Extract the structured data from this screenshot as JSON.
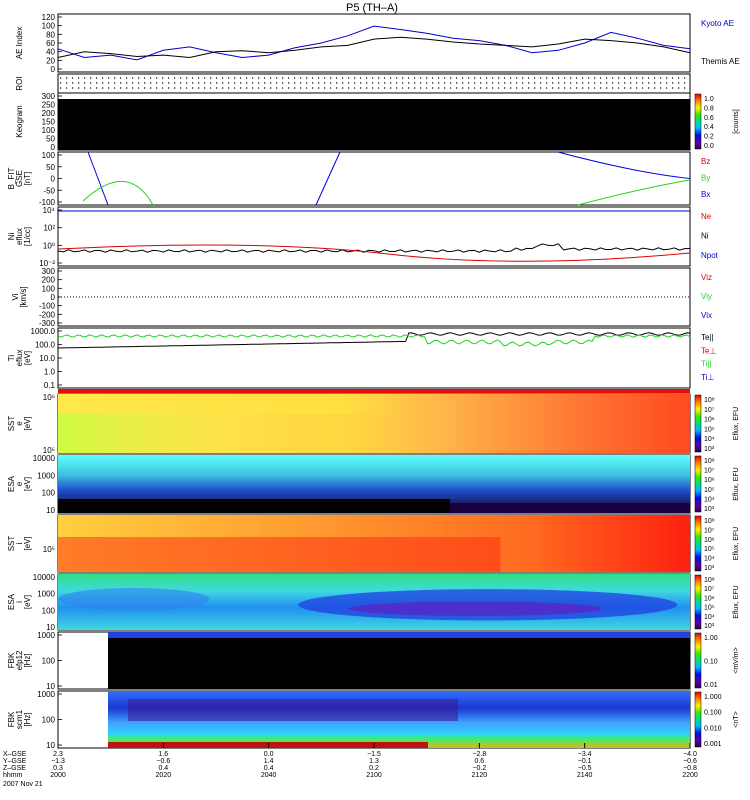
{
  "title": "P5 (TH–A)",
  "colors": {
    "red": "#d80000",
    "green": "#1fd41f",
    "blue": "#0000e0",
    "black": "#000000"
  },
  "chart_data": [
    {
      "id": "ae",
      "type": "line",
      "ylabel": [
        "AE Index"
      ],
      "ylim": [
        0,
        120
      ],
      "ticks": [
        "120",
        "100",
        "80",
        "60",
        "40",
        "20",
        "0"
      ],
      "legend": [
        {
          "label": "Kyoto AE",
          "color": "#0000d0"
        },
        {
          "label": "Themis AE",
          "color": "#000000"
        }
      ],
      "x": [
        0,
        5,
        10,
        15,
        20,
        25,
        30,
        35,
        40,
        45,
        50,
        55,
        60,
        65,
        70,
        75,
        80,
        85,
        90,
        95,
        100,
        105,
        110,
        115,
        120
      ],
      "series": [
        {
          "name": "Kyoto AE",
          "color": "#0000d0",
          "values": [
            48,
            30,
            35,
            25,
            45,
            52,
            40,
            30,
            35,
            50,
            60,
            75,
            95,
            88,
            80,
            70,
            65,
            55,
            40,
            45,
            60,
            82,
            70,
            55,
            48
          ]
        },
        {
          "name": "Themis AE",
          "color": "#000000",
          "values": [
            30,
            42,
            38,
            32,
            35,
            30,
            42,
            44,
            40,
            45,
            52,
            55,
            68,
            72,
            68,
            62,
            58,
            55,
            52,
            58,
            68,
            65,
            60,
            52,
            40
          ]
        }
      ]
    },
    {
      "id": "roi",
      "type": "table",
      "ylabel": [
        "ROI"
      ]
    },
    {
      "id": "keogram",
      "type": "heatmap",
      "ylabel": [
        "Keogram"
      ],
      "ticks": [
        "300",
        "250",
        "200",
        "150",
        "100",
        "50",
        "0"
      ],
      "colorbar": {
        "ticks": [
          "1.0",
          "0.8",
          "0.6",
          "0.4",
          "0.2",
          "0.0"
        ],
        "label": "[counts]"
      }
    },
    {
      "id": "bfield",
      "type": "line",
      "ylabel": [
        "B_FIT",
        "GSE",
        "[nT]"
      ],
      "ylim": [
        -100,
        100
      ],
      "ticks": [
        "100",
        "50",
        "0",
        "-50",
        "-100"
      ],
      "legend": [
        {
          "label": "Bz",
          "color": "#d80000"
        },
        {
          "label": "By",
          "color": "#1fd41f"
        },
        {
          "label": "Bx",
          "color": "#0000e0"
        }
      ]
    },
    {
      "id": "density",
      "type": "line",
      "ylabel": [
        "Ni",
        "eflux",
        "[1/cc]"
      ],
      "ticks": [
        "10⁴",
        "10²",
        "10⁰",
        "10⁻²"
      ],
      "legend": [
        {
          "label": "Ne",
          "color": "#d80000"
        },
        {
          "label": "Ni",
          "color": "#000000"
        },
        {
          "label": "Npot",
          "color": "#0000e0"
        }
      ]
    },
    {
      "id": "velocity",
      "type": "line",
      "ylabel": [
        "Vi",
        "[km/s]"
      ],
      "ylim": [
        -300,
        300
      ],
      "ticks": [
        "300",
        "200",
        "100",
        "0",
        "-100",
        "-200",
        "-300"
      ],
      "legend": [
        {
          "label": "Viz",
          "color": "#d80000"
        },
        {
          "label": "Viy",
          "color": "#1fd41f"
        },
        {
          "label": "Vix",
          "color": "#0000e0"
        }
      ]
    },
    {
      "id": "temperature",
      "type": "line",
      "ylabel": [
        "Ti",
        "eflux",
        "[eV]"
      ],
      "ticks": [
        "1000.0",
        "100.0",
        "10.0",
        "1.0",
        "0.1"
      ],
      "legend": [
        {
          "label": "Te||",
          "color": "#000000"
        },
        {
          "label": "Te⊥",
          "color": "#d80000"
        },
        {
          "label": "Ti||",
          "color": "#1fd41f"
        },
        {
          "label": "Ti⊥",
          "color": "#0000e0"
        }
      ]
    },
    {
      "id": "sst_e",
      "type": "heatmap",
      "ylabel": [
        "SST",
        "e",
        "[eV]"
      ],
      "ticks": [
        "10⁶",
        "10⁵"
      ],
      "colorbar": {
        "ticks": [
          "10⁸",
          "10⁷",
          "10⁶",
          "10⁵",
          "10⁴",
          "10³"
        ],
        "label": "Eflux, EFU"
      }
    },
    {
      "id": "esa_e",
      "type": "heatmap",
      "ylabel": [
        "ESA",
        "e",
        "[eV]"
      ],
      "ticks": [
        "10000",
        "1000",
        "100",
        "10"
      ],
      "colorbar": {
        "ticks": [
          "10⁸",
          "10⁷",
          "10⁶",
          "10⁵",
          "10⁴",
          "10³"
        ],
        "label": "Eflux, EFU"
      }
    },
    {
      "id": "sst_i",
      "type": "heatmap",
      "ylabel": [
        "SST",
        "i",
        "[eV]"
      ],
      "ticks": [
        "10⁵"
      ],
      "colorbar": {
        "ticks": [
          "10⁸",
          "10⁷",
          "10⁶",
          "10⁵",
          "10⁴",
          "10³"
        ],
        "label": "Eflux, EFU"
      }
    },
    {
      "id": "esa_i",
      "type": "heatmap",
      "ylabel": [
        "ESA",
        "i",
        "[eV]"
      ],
      "ticks": [
        "10000",
        "1000",
        "100",
        "10"
      ],
      "colorbar": {
        "ticks": [
          "10⁸",
          "10⁷",
          "10⁶",
          "10⁵",
          "10⁴",
          "10³"
        ],
        "label": "Eflux, EFU"
      }
    },
    {
      "id": "fbk_e",
      "type": "heatmap",
      "ylabel": [
        "FBK",
        "efp12",
        "[Hz]"
      ],
      "ticks": [
        "1000",
        "100",
        "10"
      ],
      "colorbar": {
        "ticks": [
          "1.00",
          "0.10",
          "0.01"
        ],
        "label": "<mV/m>"
      }
    },
    {
      "id": "fbk_b",
      "type": "heatmap",
      "ylabel": [
        "FBK",
        "scm1",
        "[Hz]"
      ],
      "ticks": [
        "1000",
        "100",
        "10"
      ],
      "colorbar": {
        "ticks": [
          "1.000",
          "0.100",
          "0.010",
          "0.001"
        ],
        "label": "<nT>"
      }
    }
  ],
  "xaxis": {
    "row_labels": [
      "X–GSE",
      "Y–GSE",
      "Z–GSE",
      "hhmm",
      "2007 Nov 21"
    ],
    "columns": [
      {
        "x": "2.3",
        "y": "−1.3",
        "z": "0.3",
        "t": "2000"
      },
      {
        "x": "1.6",
        "y": "−0.6",
        "z": "0.4",
        "t": "2020"
      },
      {
        "x": "0.0",
        "y": "1.4",
        "z": "0.4",
        "t": "2040"
      },
      {
        "x": "−1.5",
        "y": "1.3",
        "z": "0.2",
        "t": "2100"
      },
      {
        "x": "−2.8",
        "y": "0.6",
        "z": "−0.2",
        "t": "2120"
      },
      {
        "x": "−3.4",
        "y": "−0.1",
        "z": "−0.5",
        "t": "2140"
      },
      {
        "x": "−4.0",
        "y": "−0.6",
        "z": "−0.8",
        "t": "2200"
      }
    ]
  }
}
